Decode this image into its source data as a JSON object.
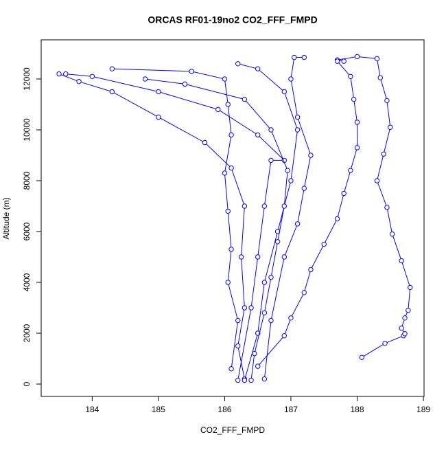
{
  "chart_data": {
    "type": "line",
    "title": "ORCAS RF01-19no2 CO2_FFF_FMPD",
    "x_label": "CO2_FFF_FMPD",
    "y_label": "Altitude (m)",
    "xlim": [
      183.23,
      189.01
    ],
    "ylim": [
      -486,
      13540
    ],
    "xticks": [
      184,
      185,
      186,
      187,
      188,
      189
    ],
    "yticks": [
      0,
      2000,
      4000,
      6000,
      8000,
      10000,
      12000
    ],
    "series": [
      {
        "color": "#0000ff",
        "x": [
          188.07,
          188.42,
          188.7,
          188.72,
          188.67,
          188.72,
          188.77,
          188.8,
          188.67,
          188.53,
          188.45,
          188.3,
          188.4,
          188.5,
          188.45,
          188.35,
          188.3,
          188.0,
          187.7,
          187.8
        ],
        "values": [
          1050,
          1600,
          1900,
          1980,
          2200,
          2600,
          2900,
          3800,
          4850,
          5900,
          6950,
          8000,
          9050,
          10100,
          11150,
          12050,
          12800,
          12880,
          12750,
          12700
        ]
      },
      {
        "color": "#0000ff",
        "x": [
          186.5,
          186.9,
          187.0,
          187.2,
          187.3,
          187.5,
          187.7,
          187.8,
          187.9,
          188.0,
          188.0,
          187.95,
          187.9,
          187.7
        ],
        "values": [
          700,
          1900,
          2600,
          3600,
          4500,
          5500,
          6500,
          7500,
          8400,
          9300,
          10300,
          11200,
          12100,
          12700
        ]
      },
      {
        "color": "#0000ff",
        "x": [
          186.3,
          186.2,
          186.3,
          186.25,
          186.3,
          186.1,
          185.7,
          185.0,
          184.3,
          183.8,
          183.5
        ],
        "values": [
          200,
          1500,
          3000,
          5000,
          7000,
          8500,
          9500,
          10500,
          11500,
          11900,
          12200
        ]
      },
      {
        "color": "#0000ff",
        "x": [
          186.3,
          186.5,
          186.6,
          186.8,
          187.0,
          187.1,
          186.9,
          186.5,
          186.2
        ],
        "values": [
          150,
          2000,
          4000,
          6000,
          8000,
          10000,
          11500,
          12400,
          12600
        ]
      },
      {
        "color": "#0000ff",
        "x": [
          186.2,
          186.4,
          186.5,
          186.6,
          186.7,
          186.9,
          186.5,
          185.9,
          185.0,
          184.0,
          183.6
        ],
        "values": [
          150,
          3000,
          5000,
          7000,
          8800,
          8800,
          9800,
          10800,
          11500,
          12100,
          12200
        ]
      },
      {
        "color": "#0000ff",
        "x": [
          186.1,
          186.2,
          186.05,
          186.1,
          186.05,
          186.0,
          186.1,
          186.05,
          186.0,
          185.5,
          184.3
        ],
        "values": [
          600,
          2500,
          4000,
          5300,
          6800,
          8300,
          9800,
          11000,
          12000,
          12300,
          12400
        ]
      },
      {
        "color": "#0000ff",
        "x": [
          186.6,
          186.7,
          186.9,
          187.1,
          187.2,
          187.3,
          187.1,
          187.0,
          187.05,
          187.2
        ],
        "values": [
          200,
          2500,
          5000,
          6300,
          7700,
          9000,
          10500,
          12000,
          12850,
          12850
        ]
      },
      {
        "color": "#0000ff",
        "x": [
          186.4,
          186.45,
          186.6,
          186.7,
          186.8,
          186.9,
          186.95,
          186.7,
          186.3,
          185.4,
          184.8
        ],
        "values": [
          150,
          1200,
          2800,
          4200,
          5600,
          7000,
          8400,
          10000,
          11200,
          11800,
          12000
        ]
      }
    ]
  }
}
